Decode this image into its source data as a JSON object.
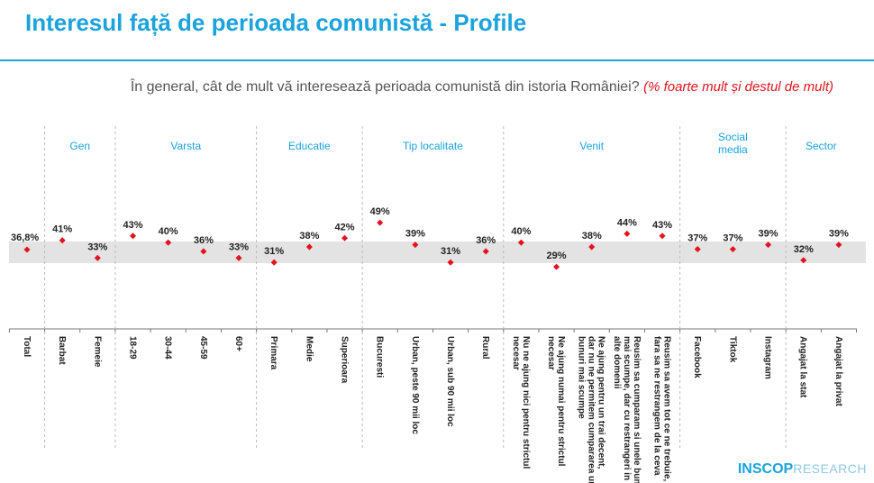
{
  "title": "Interesul față de perioada comunistă - Profile",
  "question": "În general, cât de mult vă interesează perioada comunistă din istoria României?",
  "question_note": "(% foarte mult și destul de mult)",
  "logo": {
    "brand": "INSCOP",
    "suffix": "RESEARCH"
  },
  "colors": {
    "accent": "#1aa3dd",
    "marker": "#e3141e",
    "band": "#e3e3e3"
  },
  "chart_data": {
    "type": "scatter",
    "reference_band_label": "Total",
    "groups": [
      {
        "name": "",
        "categories": [
          "Total"
        ]
      },
      {
        "name": "Gen",
        "categories": [
          "Barbat",
          "Femeie"
        ]
      },
      {
        "name": "Varsta",
        "categories": [
          "18-29",
          "30-44",
          "45-59",
          "60+"
        ]
      },
      {
        "name": "Educatie",
        "categories": [
          "Primara",
          "Medie",
          "Superioara"
        ]
      },
      {
        "name": "Tip localitate",
        "categories": [
          "Bucuresti",
          "Urban, peste 90 mii loc",
          "Urban, sub 90 mii loc",
          "Rural"
        ]
      },
      {
        "name": "Venit",
        "categories": [
          "Nu ne ajung nici pentru strictul necesar",
          "Ne ajung numai pentru strictul necesar",
          "Ne ajung pentru un trai decent, dar nu ne permitem cumpararea unor bunuri mai scumpe",
          "Reusim sa cumparam si unele bunuri mai scumpe, dar cu restrangeri in alte domenii",
          "Reusim sa avem tot ce ne trebuie, fara sa ne restrangem de la ceva"
        ]
      },
      {
        "name": "Social media",
        "categories": [
          "Facebook",
          "Tiktok",
          "Instagram"
        ]
      },
      {
        "name": "Sector",
        "categories": [
          "Angajat la stat",
          "Angajat la privat"
        ]
      }
    ],
    "values": [
      36.8,
      41,
      33,
      43,
      40,
      36,
      33,
      31,
      38,
      42,
      49,
      39,
      31,
      36,
      40,
      29,
      38,
      44,
      43,
      37,
      37,
      39,
      32,
      39
    ],
    "labels": [
      "36,8%",
      "41%",
      "33%",
      "43%",
      "40%",
      "36%",
      "33%",
      "31%",
      "38%",
      "42%",
      "49%",
      "39%",
      "31%",
      "36%",
      "40%",
      "29%",
      "38%",
      "44%",
      "43%",
      "37%",
      "37%",
      "39%",
      "32%",
      "39%"
    ]
  }
}
